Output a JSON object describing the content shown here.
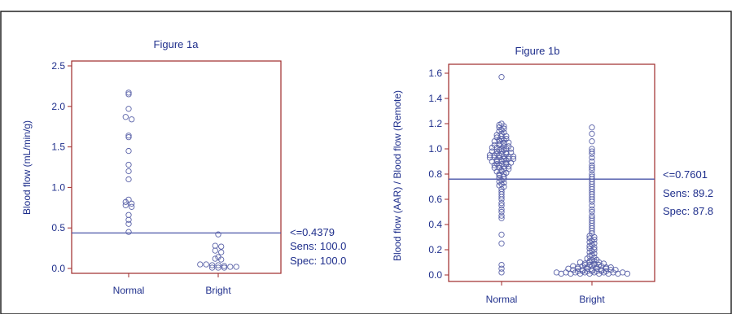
{
  "chart_data": [
    {
      "type": "scatter",
      "title": "Figure 1a",
      "xlabel": "",
      "ylabel": "Blood flow (mL/min/g)",
      "categories": [
        "Normal",
        "Bright"
      ],
      "ylim": [
        0,
        2.5
      ],
      "yticks": [
        "0.0",
        "0.5",
        "1.0",
        "1.5",
        "2.0",
        "2.5"
      ],
      "yticks_values": [
        0,
        0.5,
        1.0,
        1.5,
        2.0,
        2.5
      ],
      "cutoff": 0.4379,
      "annotation": [
        "<=0.4379",
        "Sens: 100.0",
        "Spec: 100.0"
      ],
      "series": [
        {
          "category": "Normal",
          "values": [
            2.17,
            2.15,
            1.97,
            1.87,
            1.84,
            1.64,
            1.62,
            1.45,
            1.28,
            1.2,
            1.1,
            0.85,
            0.82,
            0.8,
            0.78,
            0.76,
            0.66,
            0.6,
            0.55,
            0.45
          ]
        },
        {
          "category": "Bright",
          "values": [
            0.42,
            0.28,
            0.27,
            0.22,
            0.2,
            0.14,
            0.12,
            0.11,
            0.05,
            0.05,
            0.04,
            0.04,
            0.03,
            0.02,
            0.02,
            0.01,
            0.01,
            0.01
          ]
        }
      ]
    },
    {
      "type": "scatter",
      "title": "Figure 1b",
      "xlabel": "",
      "ylabel": "Blood flow (AAR) / Blood flow (Remote)",
      "categories": [
        "Normal",
        "Bright"
      ],
      "ylim": [
        -0.05,
        1.7
      ],
      "yticks": [
        "0.0",
        "0.2",
        "0.4",
        "0.6",
        "0.8",
        "1.0",
        "1.2",
        "1.4",
        "1.6"
      ],
      "yticks_values": [
        0,
        0.2,
        0.4,
        0.6,
        0.8,
        1.0,
        1.2,
        1.4,
        1.6
      ],
      "cutoff": 0.7601,
      "annotation": [
        "<=0.7601",
        "Sens: 89.2",
        "Spec: 87.8"
      ],
      "series": [
        {
          "category": "Normal",
          "values": [
            1.57,
            1.2,
            1.19,
            1.18,
            1.17,
            1.16,
            1.15,
            1.14,
            1.13,
            1.12,
            1.11,
            1.1,
            1.1,
            1.09,
            1.08,
            1.08,
            1.07,
            1.07,
            1.06,
            1.06,
            1.05,
            1.05,
            1.04,
            1.04,
            1.03,
            1.03,
            1.02,
            1.02,
            1.01,
            1.01,
            1.0,
            1.0,
            1.0,
            0.99,
            0.99,
            0.98,
            0.98,
            0.98,
            0.97,
            0.97,
            0.96,
            0.96,
            0.96,
            0.95,
            0.95,
            0.95,
            0.94,
            0.94,
            0.94,
            0.93,
            0.93,
            0.93,
            0.92,
            0.92,
            0.92,
            0.91,
            0.91,
            0.91,
            0.9,
            0.9,
            0.9,
            0.89,
            0.89,
            0.88,
            0.88,
            0.88,
            0.87,
            0.87,
            0.86,
            0.86,
            0.85,
            0.85,
            0.84,
            0.84,
            0.83,
            0.82,
            0.82,
            0.81,
            0.8,
            0.8,
            0.79,
            0.78,
            0.77,
            0.76,
            0.75,
            0.74,
            0.73,
            0.72,
            0.71,
            0.7,
            0.68,
            0.66,
            0.64,
            0.62,
            0.6,
            0.57,
            0.55,
            0.52,
            0.5,
            0.47,
            0.45,
            0.32,
            0.25,
            0.08,
            0.05,
            0.02
          ]
        },
        {
          "category": "Bright",
          "values": [
            1.17,
            1.12,
            1.06,
            1.0,
            0.98,
            0.96,
            0.93,
            0.9,
            0.87,
            0.85,
            0.83,
            0.8,
            0.78,
            0.76,
            0.74,
            0.72,
            0.7,
            0.68,
            0.66,
            0.64,
            0.62,
            0.6,
            0.58,
            0.55,
            0.52,
            0.5,
            0.47,
            0.45,
            0.43,
            0.41,
            0.39,
            0.37,
            0.35,
            0.33,
            0.31,
            0.3,
            0.29,
            0.28,
            0.27,
            0.26,
            0.25,
            0.24,
            0.23,
            0.22,
            0.21,
            0.2,
            0.19,
            0.18,
            0.17,
            0.16,
            0.15,
            0.14,
            0.13,
            0.12,
            0.11,
            0.1,
            0.09,
            0.08,
            0.07,
            0.06,
            0.05,
            0.04,
            0.03,
            0.02,
            0.01,
            0.12,
            0.11,
            0.1,
            0.09,
            0.08,
            0.07,
            0.06,
            0.05,
            0.04,
            0.03,
            0.02,
            0.01,
            0.1,
            0.09,
            0.08,
            0.07,
            0.06,
            0.05,
            0.04,
            0.03,
            0.02,
            0.01,
            0.08,
            0.07,
            0.06,
            0.05,
            0.04,
            0.03,
            0.02,
            0.01,
            0.06,
            0.05,
            0.04,
            0.03,
            0.02,
            0.01,
            0.04,
            0.03,
            0.02,
            0.01,
            0.03,
            0.02,
            0.01,
            0.02,
            0.01
          ]
        }
      ]
    }
  ]
}
